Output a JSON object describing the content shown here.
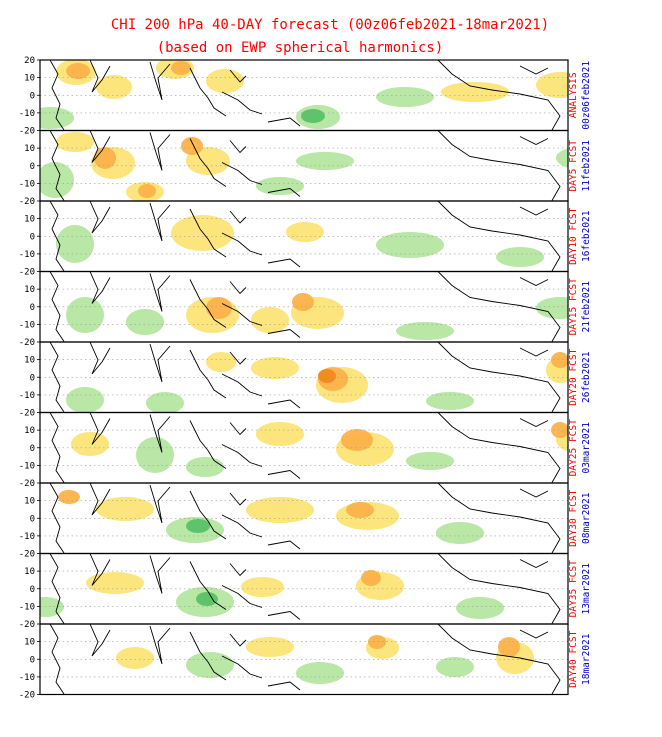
{
  "chart_data": {
    "type": "heatmap",
    "title": "CHI 200 hPa 40-DAY forecast (00z06feb2021-18mar2021)",
    "subtitle": "(based on EWP spherical harmonics)",
    "ylim": [
      -20,
      20
    ],
    "yticks": [
      "20",
      "10",
      "0",
      "-10",
      "-20"
    ],
    "grid": true,
    "colors": {
      "light_yellow": "#fff7b8",
      "yellow": "#fde47a",
      "orange": "#fcb24a",
      "dark_orange": "#f28a1c",
      "light_green": "#dff5d2",
      "green": "#b6e6a2",
      "dark_green": "#58c268",
      "frame": "#000000",
      "gridline": "#9e9e9e",
      "title_red": "#ff0000",
      "date_blue": "#0000cc"
    },
    "panels": [
      {
        "label_red": "ANALYSIS",
        "label_blue": "00z06feb2021",
        "yellow": [
          [
            60,
            62,
            32,
            20
          ],
          [
            100,
            78,
            28,
            18
          ],
          [
            160,
            60,
            30,
            16
          ],
          [
            210,
            72,
            30,
            18
          ],
          [
            445,
            85,
            60,
            14
          ],
          [
            540,
            75,
            40,
            20
          ]
        ],
        "orange": [
          [
            70,
            66,
            16,
            10
          ],
          [
            175,
            64,
            12,
            8
          ]
        ],
        "green": [
          [
            300,
            108,
            36,
            18
          ],
          [
            380,
            90,
            50,
            14
          ],
          [
            30,
            110,
            40,
            16
          ]
        ],
        "dark_green": [
          [
            305,
            112,
            16,
            8
          ]
        ]
      },
      {
        "label_red": "DAY5 FCST",
        "label_blue": "11feb2021",
        "yellow": [
          [
            95,
            150,
            36,
            26
          ],
          [
            190,
            150,
            36,
            22
          ],
          [
            60,
            135,
            30,
            14
          ],
          [
            130,
            185,
            30,
            14
          ]
        ],
        "orange": [
          [
            98,
            150,
            14,
            16
          ],
          [
            185,
            140,
            14,
            12
          ],
          [
            142,
            187,
            10,
            8
          ]
        ],
        "green": [
          [
            40,
            165,
            30,
            30
          ],
          [
            260,
            180,
            40,
            12
          ],
          [
            300,
            155,
            50,
            12
          ],
          [
            560,
            150,
            40,
            16
          ]
        ],
        "dark_green": []
      },
      {
        "label_red": "DAY10 FCST",
        "label_blue": "16feb2021",
        "yellow": [
          [
            175,
            218,
            55,
            30
          ],
          [
            290,
            225,
            30,
            14
          ],
          [
            590,
            235,
            20,
            14
          ]
        ],
        "orange": [],
        "green": [
          [
            60,
            228,
            30,
            32
          ],
          [
            380,
            235,
            60,
            20
          ],
          [
            500,
            250,
            40,
            14
          ]
        ],
        "dark_green": []
      },
      {
        "label_red": "DAY15 FCST",
        "label_blue": "21feb2021",
        "yellow": [
          [
            190,
            300,
            45,
            30
          ],
          [
            295,
            300,
            45,
            26
          ],
          [
            255,
            310,
            30,
            20
          ]
        ],
        "orange": [
          [
            210,
            300,
            18,
            16
          ],
          [
            296,
            296,
            14,
            12
          ]
        ],
        "green": [
          [
            70,
            300,
            30,
            30
          ],
          [
            130,
            312,
            30,
            20
          ],
          [
            400,
            325,
            50,
            12
          ],
          [
            540,
            300,
            40,
            16
          ]
        ],
        "dark_green": []
      },
      {
        "label_red": "DAY20 FCST",
        "label_blue": "26feb2021",
        "yellow": [
          [
            320,
            370,
            44,
            30
          ],
          [
            255,
            360,
            40,
            16
          ],
          [
            210,
            355,
            22,
            14
          ],
          [
            550,
            360,
            20,
            20
          ]
        ],
        "orange": [
          [
            322,
            370,
            22,
            18
          ],
          [
            555,
            355,
            10,
            10
          ]
        ],
        "dark_orange": [
          [
            322,
            372,
            10,
            8
          ]
        ],
        "green": [
          [
            70,
            390,
            30,
            20
          ],
          [
            150,
            395,
            30,
            16
          ],
          [
            430,
            395,
            40,
            12
          ]
        ],
        "dark_green": []
      },
      {
        "label_red": "DAY25 FCST",
        "label_blue": "03mar2021",
        "yellow": [
          [
            340,
            435,
            50,
            28
          ],
          [
            260,
            425,
            40,
            18
          ],
          [
            560,
            430,
            20,
            18
          ],
          [
            75,
            435,
            30,
            18
          ]
        ],
        "orange": [
          [
            345,
            432,
            24,
            16
          ],
          [
            555,
            425,
            10,
            10
          ]
        ],
        "green": [
          [
            140,
            440,
            30,
            30
          ],
          [
            190,
            460,
            30,
            14
          ],
          [
            410,
            455,
            40,
            12
          ]
        ],
        "dark_green": []
      },
      {
        "label_red": "DAY30 FCST",
        "label_blue": "08mar2021",
        "yellow": [
          [
            340,
            505,
            55,
            22
          ],
          [
            250,
            500,
            60,
            20
          ],
          [
            100,
            500,
            50,
            18
          ]
        ],
        "orange": [
          [
            62,
            493,
            14,
            8
          ],
          [
            350,
            505,
            20,
            10
          ]
        ],
        "green": [
          [
            170,
            520,
            50,
            20
          ],
          [
            440,
            525,
            40,
            16
          ]
        ],
        "dark_green": [
          [
            190,
            522,
            16,
            8
          ]
        ]
      },
      {
        "label_red": "DAY35 FCST",
        "label_blue": "13mar2021",
        "yellow": [
          [
            360,
            575,
            40,
            22
          ],
          [
            90,
            575,
            50,
            16
          ],
          [
            245,
            580,
            35,
            14
          ],
          [
            590,
            575,
            20,
            18
          ]
        ],
        "orange": [
          [
            365,
            573,
            12,
            10
          ]
        ],
        "green": [
          [
            180,
            590,
            50,
            24
          ],
          [
            460,
            600,
            40,
            16
          ],
          [
            30,
            600,
            30,
            14
          ]
        ],
        "dark_green": [
          [
            200,
            595,
            14,
            8
          ]
        ]
      },
      {
        "label_red": "DAY40 FCST",
        "label_blue": "18mar2021",
        "yellow": [
          [
            500,
            645,
            30,
            26
          ],
          [
            370,
            640,
            25,
            16
          ],
          [
            250,
            640,
            40,
            14
          ],
          [
            120,
            650,
            30,
            16
          ]
        ],
        "orange": [
          [
            502,
            640,
            14,
            14
          ],
          [
            372,
            638,
            10,
            8
          ]
        ],
        "green": [
          [
            190,
            655,
            40,
            20
          ],
          [
            300,
            665,
            40,
            16
          ],
          [
            440,
            660,
            30,
            14
          ]
        ],
        "dark_green": []
      }
    ]
  }
}
